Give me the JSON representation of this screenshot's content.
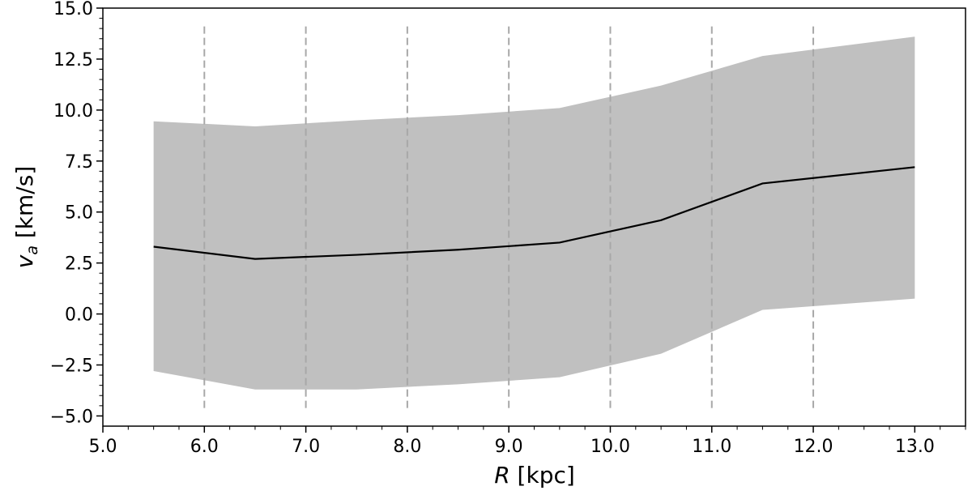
{
  "chart_data": {
    "type": "line",
    "xlabel": {
      "italic": "R",
      "rest": " [kpc]"
    },
    "ylabel": {
      "italic": "v",
      "sub": "a",
      "rest": " [km/s]"
    },
    "xlim": [
      5.0,
      13.5
    ],
    "ylim": [
      -5.5,
      15.0
    ],
    "x_ticks": [
      5.0,
      6.0,
      7.0,
      8.0,
      9.0,
      10.0,
      11.0,
      12.0,
      13.0
    ],
    "x_tick_labels": [
      "5.0",
      "6.0",
      "7.0",
      "8.0",
      "9.0",
      "10.0",
      "11.0",
      "12.0",
      "13.0"
    ],
    "y_ticks": [
      -5.0,
      -2.5,
      0.0,
      2.5,
      5.0,
      7.5,
      10.0,
      12.5,
      15.0
    ],
    "y_tick_labels": [
      "−5.0",
      "−2.5",
      "0.0",
      "2.5",
      "5.0",
      "7.5",
      "10.0",
      "12.5",
      "15.0"
    ],
    "series": [
      {
        "x": [
          5.5,
          6.5,
          7.5,
          8.5,
          9.5,
          10.5,
          11.5,
          13.0
        ],
        "y": [
          3.3,
          2.7,
          2.9,
          3.15,
          3.5,
          4.6,
          6.4,
          7.2
        ],
        "color": "#000000"
      }
    ],
    "band": {
      "x": [
        5.5,
        6.5,
        7.5,
        8.5,
        9.5,
        10.5,
        11.5,
        13.0
      ],
      "lower": [
        -2.8,
        -3.7,
        -3.7,
        -3.45,
        -3.1,
        -1.95,
        0.2,
        0.75
      ],
      "upper": [
        9.45,
        9.2,
        9.5,
        9.75,
        10.1,
        11.2,
        12.65,
        13.6
      ],
      "color": "#c0c0c0"
    },
    "vlines": {
      "x": [
        6.0,
        7.0,
        8.0,
        9.0,
        10.0,
        11.0,
        12.0
      ],
      "ymin": -4.7,
      "ymax": 14.1,
      "style": "dashed",
      "color": "#a8a8a8"
    },
    "grid": false,
    "legend": "none"
  }
}
